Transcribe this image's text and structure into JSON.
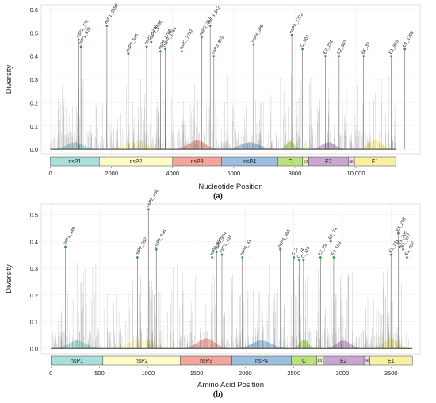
{
  "figure": {
    "panels": [
      {
        "caption": "(a)",
        "chart_data": {
          "type": "line",
          "title": "",
          "xlabel": "Nucleotide Position",
          "ylabel": "Diversity",
          "xlim": [
            -300,
            12100
          ],
          "ylim": [
            -0.02,
            0.62
          ],
          "x_ticks": [
            {
              "value": 0,
              "label": "0"
            },
            {
              "value": 2000,
              "label": "2000"
            },
            {
              "value": 4000,
              "label": "4000"
            },
            {
              "value": 6000,
              "label": "6000"
            },
            {
              "value": 8000,
              "label": "8000"
            },
            {
              "value": 10000,
              "label": "10,000"
            }
          ],
          "y_ticks": [
            0.0,
            0.1,
            0.2,
            0.3,
            0.4,
            0.5,
            0.6
          ],
          "y_tick_labels": [
            "0.0",
            "0.1",
            "0.2",
            "0.3",
            "0.4",
            "0.5",
            "0.6"
          ],
          "grid": true,
          "peaks": [
            {
              "x": 927,
              "y": 0.47,
              "label": "nsP1_778"
            },
            {
              "x": 1000,
              "y": 0.44,
              "label": "nsP1_831"
            },
            {
              "x": 1850,
              "y": 0.53,
              "label": "nsP1_1599"
            },
            {
              "x": 2550,
              "y": 0.41,
              "label": "nsP2_645"
            },
            {
              "x": 3150,
              "y": 0.44,
              "label": "nsP2_1245"
            },
            {
              "x": 3300,
              "y": 0.46,
              "label": "nsP2_1396"
            },
            {
              "x": 3600,
              "y": 0.42,
              "label": "nsP2_1708"
            },
            {
              "x": 3760,
              "y": 0.43,
              "label": "nsP2_1764"
            },
            {
              "x": 4300,
              "y": 0.42,
              "label": "nsP2_2292"
            },
            {
              "x": 4950,
              "y": 0.48,
              "label": "nsP3_387"
            },
            {
              "x": 5230,
              "y": 0.53,
              "label": "nsP3_612"
            },
            {
              "x": 5350,
              "y": 0.4,
              "label": "nsP3_810"
            },
            {
              "x": 6650,
              "y": 0.45,
              "label": "nsP4_385"
            },
            {
              "x": 7900,
              "y": 0.49,
              "label": "nsP4_1722"
            },
            {
              "x": 8250,
              "y": 0.43,
              "label": "C_303"
            },
            {
              "x": 9000,
              "y": 0.4,
              "label": "E2_221"
            },
            {
              "x": 9450,
              "y": 0.4,
              "label": "E2_663"
            },
            {
              "x": 10250,
              "y": 0.4,
              "label": "6K_39"
            },
            {
              "x": 11150,
              "y": 0.4,
              "label": "E1_863"
            },
            {
              "x": 11600,
              "y": 0.43,
              "label": "E1_1308"
            }
          ],
          "regions": [
            {
              "name": "nsP1",
              "start": 0,
              "end": 1600,
              "color": "#a8dfd8"
            },
            {
              "name": "nsP2",
              "start": 1600,
              "end": 4000,
              "color": "#fdfbc6"
            },
            {
              "name": "nsP3",
              "start": 4000,
              "end": 5600,
              "color": "#f3a59c"
            },
            {
              "name": "nsP4",
              "start": 5600,
              "end": 7450,
              "color": "#9cbfdf"
            },
            {
              "name": "C",
              "start": 7450,
              "end": 8250,
              "color": "#b9e27a"
            },
            {
              "name": "E3",
              "start": 8250,
              "end": 8450,
              "color": "#e7f2c0"
            },
            {
              "name": "E2",
              "start": 8450,
              "end": 9750,
              "color": "#c9a6cf"
            },
            {
              "name": "6K",
              "start": 9750,
              "end": 9950,
              "color": "#ebd9ef"
            },
            {
              "name": "E1",
              "start": 9950,
              "end": 11300,
              "color": "#f7f0a0"
            }
          ],
          "region_labels": [
            "nsP1",
            "nsP2",
            "nsP3",
            "nsP4",
            "C",
            "E3",
            "E2",
            "6K",
            "E1"
          ]
        }
      },
      {
        "caption": "(b)",
        "chart_data": {
          "type": "line",
          "title": "",
          "xlabel": "Amino Acid Position",
          "ylabel": "Diversity",
          "xlim": [
            -100,
            3800
          ],
          "ylim": [
            -0.02,
            0.54
          ],
          "x_ticks": [
            {
              "value": 0,
              "label": "0"
            },
            {
              "value": 500,
              "label": "500"
            },
            {
              "value": 1000,
              "label": "1000"
            },
            {
              "value": 1500,
              "label": "1500"
            },
            {
              "value": 2000,
              "label": "2000"
            },
            {
              "value": 2500,
              "label": "2500"
            },
            {
              "value": 3000,
              "label": "3000"
            },
            {
              "value": 3500,
              "label": "3500"
            }
          ],
          "y_ticks": [
            0.0,
            0.1,
            0.2,
            0.3,
            0.4,
            0.5
          ],
          "y_tick_labels": [
            "0.0",
            "0.1",
            "0.2",
            "0.3",
            "0.4",
            "0.5"
          ],
          "grid": true,
          "peaks": [
            {
              "x": 149,
              "y": 0.38,
              "label": "nsP1_149"
            },
            {
              "x": 890,
              "y": 0.34,
              "label": "nsP2_352"
            },
            {
              "x": 1005,
              "y": 0.52,
              "label": "nsP2_466"
            },
            {
              "x": 1085,
              "y": 0.37,
              "label": "nsP2_545"
            },
            {
              "x": 1660,
              "y": 0.34,
              "label": "nsP3_330"
            },
            {
              "x": 1705,
              "y": 0.36,
              "label": "nsP3_374"
            },
            {
              "x": 1760,
              "y": 0.35,
              "label": "nsP3_434"
            },
            {
              "x": 1970,
              "y": 0.34,
              "label": "nsP4_93"
            },
            {
              "x": 2360,
              "y": 0.37,
              "label": "nsP4_481"
            },
            {
              "x": 2500,
              "y": 0.34,
              "label": "C_3"
            },
            {
              "x": 2555,
              "y": 0.33,
              "label": "C_74"
            },
            {
              "x": 2600,
              "y": 0.33,
              "label": "C_119"
            },
            {
              "x": 2775,
              "y": 0.34,
              "label": "E3_29"
            },
            {
              "x": 2880,
              "y": 0.4,
              "label": "E2_74"
            },
            {
              "x": 2910,
              "y": 0.34,
              "label": "E2_103"
            },
            {
              "x": 3500,
              "y": 0.35,
              "label": "E1_211"
            },
            {
              "x": 3575,
              "y": 0.43,
              "label": "E1_288"
            },
            {
              "x": 3590,
              "y": 0.38,
              "label": "E1_305"
            },
            {
              "x": 3625,
              "y": 0.37,
              "label": "E1_377"
            },
            {
              "x": 3665,
              "y": 0.34,
              "label": "E1_407"
            }
          ],
          "regions": [
            {
              "name": "nsP1",
              "start": 0,
              "end": 535,
              "color": "#a8dfd8"
            },
            {
              "name": "nsP2",
              "start": 535,
              "end": 1333,
              "color": "#fdfbc6"
            },
            {
              "name": "nsP3",
              "start": 1333,
              "end": 1863,
              "color": "#f3a59c"
            },
            {
              "name": "nsP4",
              "start": 1863,
              "end": 2474,
              "color": "#9cbfdf"
            },
            {
              "name": "C",
              "start": 2474,
              "end": 2735,
              "color": "#b9e27a"
            },
            {
              "name": "E3",
              "start": 2735,
              "end": 2799,
              "color": "#e7f2c0"
            },
            {
              "name": "E2",
              "start": 2799,
              "end": 3222,
              "color": "#c9a6cf"
            },
            {
              "name": "6K",
              "start": 3222,
              "end": 3283,
              "color": "#ebd9ef"
            },
            {
              "name": "E1",
              "start": 3283,
              "end": 3720,
              "color": "#f7f0a0"
            }
          ],
          "region_labels": [
            "nsP1",
            "nsP2",
            "nsP3",
            "nsP4",
            "C",
            "E3",
            "E2",
            "6K",
            "E1"
          ]
        }
      }
    ]
  }
}
